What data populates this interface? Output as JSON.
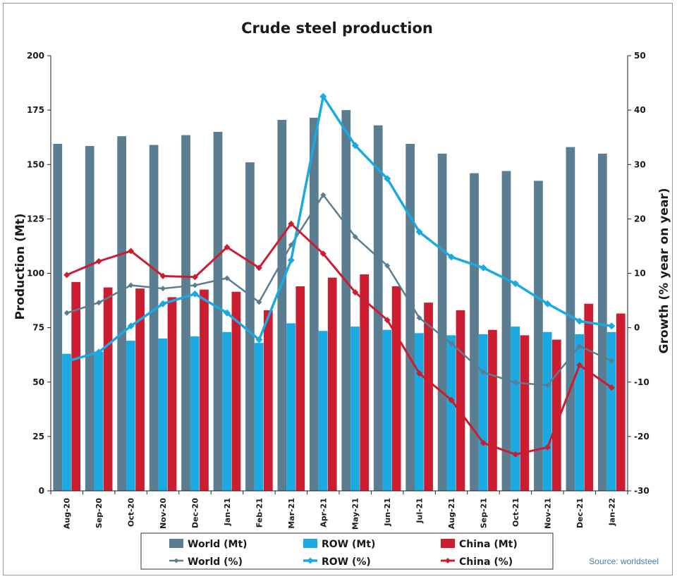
{
  "chart_data": {
    "type": "bar",
    "title": "Crude steel production",
    "ylabel": "Production (Mt)",
    "y2label": "Growth (% year on year)",
    "ylim": [
      0,
      200
    ],
    "yticks": [
      0,
      25,
      50,
      75,
      100,
      125,
      150,
      175,
      200
    ],
    "y2lim": [
      -30,
      50
    ],
    "y2ticks": [
      -30,
      -20,
      -10,
      0,
      10,
      20,
      30,
      40,
      50
    ],
    "categories": [
      "Aug-20",
      "Sep-20",
      "Oct-20",
      "Nov-20",
      "Dec-20",
      "Jan-21",
      "Feb-21",
      "Mar-21",
      "Apr-21",
      "May-21",
      "Jun-21",
      "Jul-21",
      "Aug-21",
      "Sep-21",
      "Oct-21",
      "Nov-21",
      "Dec-21",
      "Jan-22"
    ],
    "bar_series": [
      {
        "name": "World (Mt)",
        "color": "#5b7d92",
        "values": [
          159.5,
          158.5,
          163,
          159,
          163.5,
          165,
          151,
          170.5,
          171.5,
          175,
          168,
          159.5,
          155,
          146,
          147,
          142.5,
          158,
          155
        ]
      },
      {
        "name": "ROW (Mt)",
        "color": "#1aa9e0",
        "values": [
          63,
          64,
          69,
          70,
          71,
          73,
          68,
          77,
          73.5,
          75.5,
          74,
          72.5,
          71.5,
          72,
          75.5,
          73,
          72,
          73
        ]
      },
      {
        "name": "China (Mt)",
        "color": "#cc1c2f",
        "values": [
          96,
          93.5,
          93,
          89,
          92.5,
          91.5,
          83,
          94,
          98,
          99.5,
          94,
          86.5,
          83,
          74,
          71.5,
          69.5,
          86,
          81.5
        ]
      }
    ],
    "line_series": [
      {
        "name": "World (%)",
        "color": "#5b7d92",
        "values": [
          2.7,
          4.6,
          7.8,
          7.2,
          7.8,
          9.1,
          4.7,
          15.2,
          24.4,
          16.7,
          11.4,
          1.8,
          -2.9,
          -8.2,
          -10.1,
          -10.6,
          -3.4,
          -6.1
        ]
      },
      {
        "name": "ROW (%)",
        "color": "#1aa9e0",
        "values": [
          -6.2,
          -4.5,
          0.3,
          4.4,
          6.2,
          2.7,
          -2.2,
          12.4,
          42.5,
          33.5,
          27.4,
          17.6,
          13.0,
          11.0,
          8.1,
          4.4,
          1.2,
          0.3
        ]
      },
      {
        "name": "China (%)",
        "color": "#cc1c2f",
        "values": [
          9.7,
          12.2,
          14.1,
          9.5,
          9.3,
          14.8,
          11.0,
          19.1,
          13.6,
          6.5,
          1.4,
          -8.4,
          -13.3,
          -21.2,
          -23.3,
          -22.0,
          -6.9,
          -11.0
        ]
      }
    ],
    "legend": "bottom",
    "grid": false
  },
  "source_note": "Source: worldsteel"
}
